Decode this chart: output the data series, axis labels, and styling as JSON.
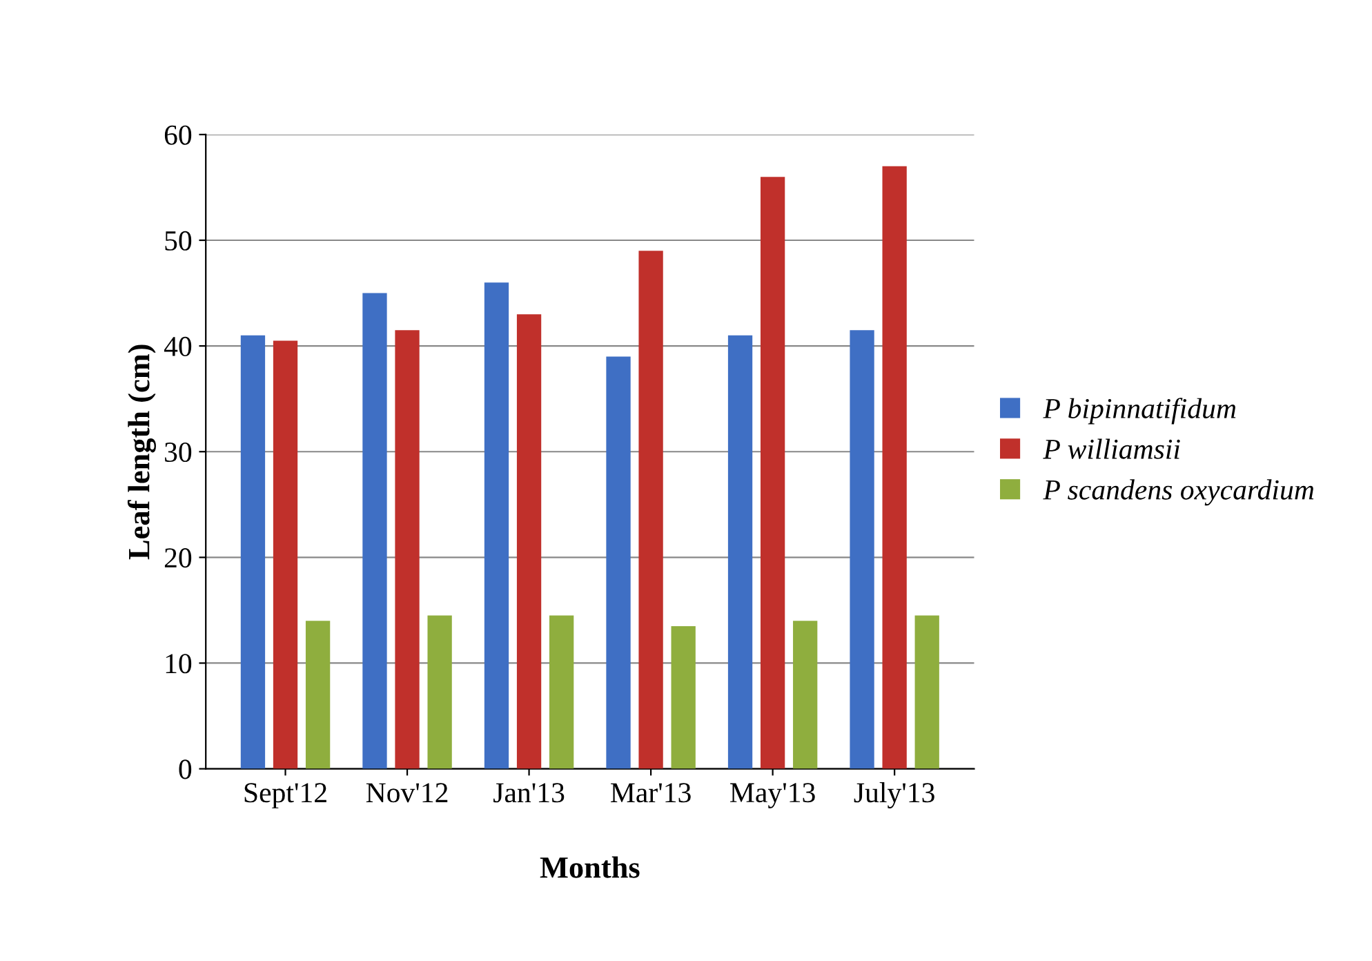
{
  "chart_data": {
    "type": "bar",
    "xlabel": "Months",
    "ylabel": "Leaf length (cm)",
    "categories": [
      "Sept'12",
      "Nov'12",
      "Jan'13",
      "Mar'13",
      "May'13",
      "July'13"
    ],
    "series": [
      {
        "name": "P bipinnatifidum",
        "color": "#3f6fc4",
        "values": [
          41,
          45,
          46,
          39,
          41,
          41.5
        ]
      },
      {
        "name": "P williamsii",
        "color": "#c0302b",
        "values": [
          40.5,
          41.5,
          43,
          49,
          56,
          57
        ]
      },
      {
        "name": "P scandens oxycardium",
        "color": "#8fae3e",
        "values": [
          14,
          14.5,
          14.5,
          13.5,
          14,
          14.5
        ]
      }
    ],
    "ylim": [
      0,
      60
    ],
    "yticks": [
      0,
      10,
      20,
      30,
      40,
      50,
      60
    ],
    "grid": "y",
    "legend": "right"
  }
}
